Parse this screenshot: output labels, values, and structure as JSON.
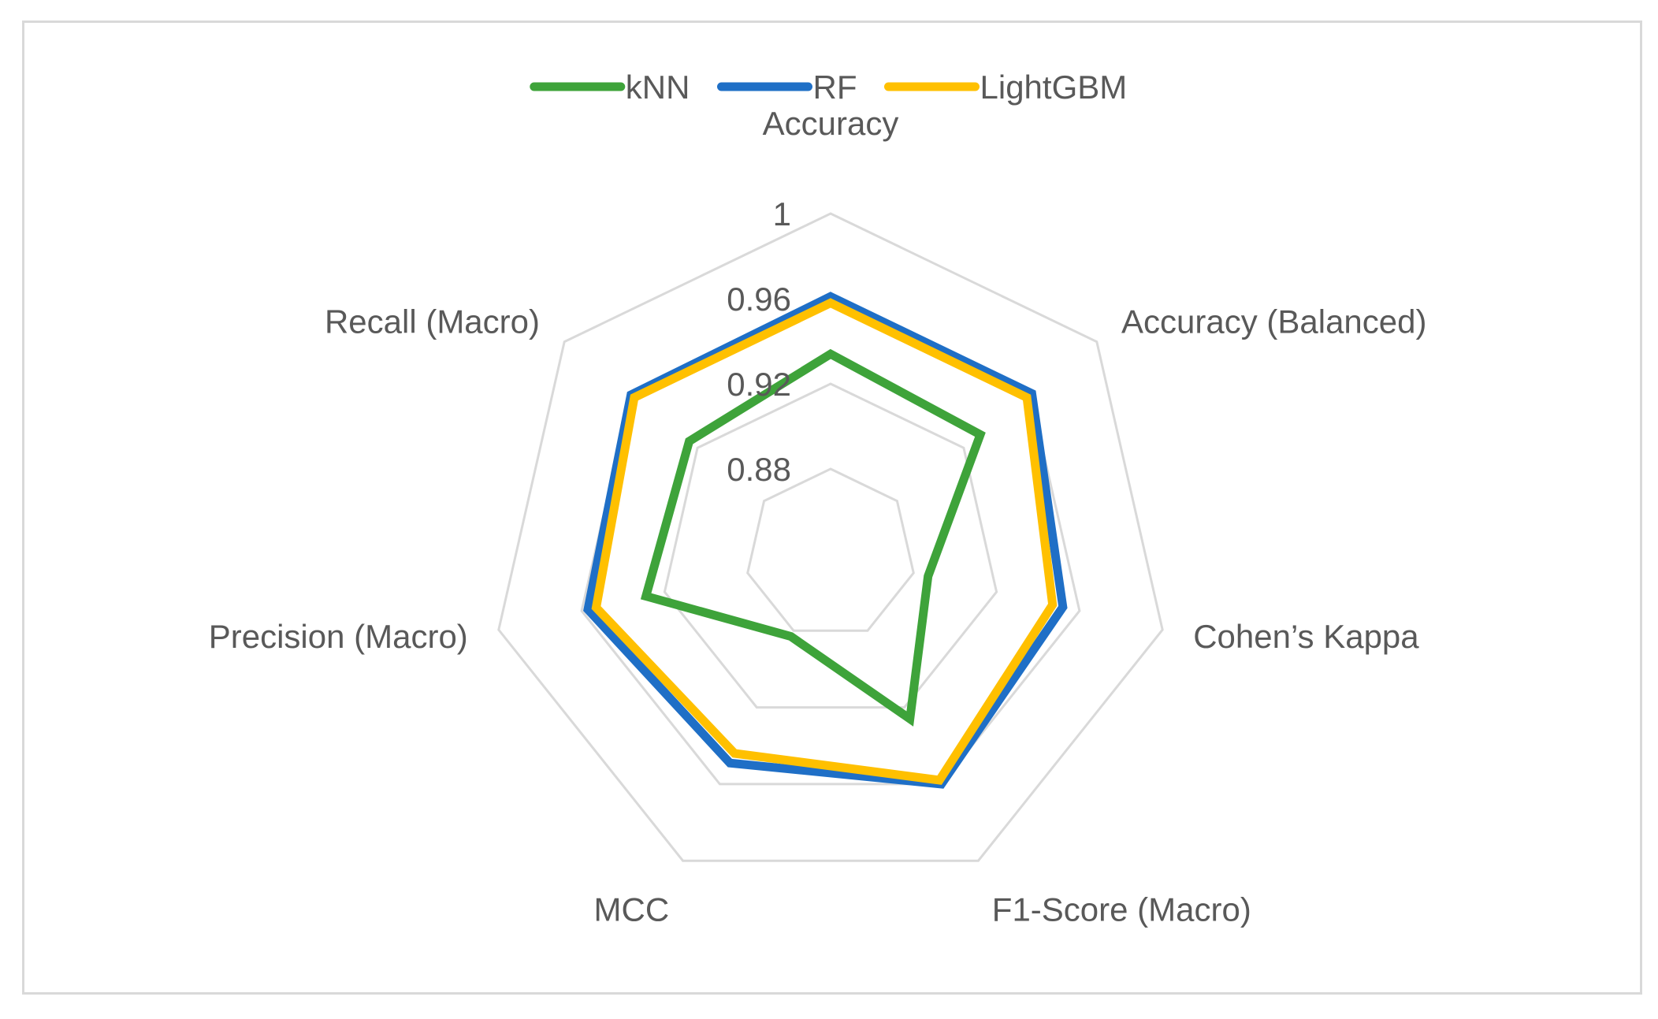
{
  "chart_data": {
    "type": "radar",
    "axes": [
      "Accuracy",
      "Accuracy (Balanced)",
      "Cohen’s Kappa",
      "F1-Score (Macro)",
      "MCC",
      "Precision (Macro)",
      "Recall (Macro)"
    ],
    "rlim": [
      0.84,
      1
    ],
    "ticks": [
      "0.88",
      "0.92",
      "0.96",
      "1"
    ],
    "grid": true,
    "legend_position": "top",
    "series": [
      {
        "name": "kNN",
        "color": "#3ea33a",
        "values": [
          0.934,
          0.93,
          0.887,
          0.926,
          0.883,
          0.929,
          0.925
        ]
      },
      {
        "name": "RF",
        "color": "#1f6fc6",
        "values": [
          0.961,
          0.961,
          0.952,
          0.96,
          0.949,
          0.957,
          0.96
        ]
      },
      {
        "name": "LightGBM",
        "color": "#ffc000",
        "values": [
          0.958,
          0.958,
          0.947,
          0.958,
          0.944,
          0.953,
          0.958
        ]
      }
    ]
  }
}
